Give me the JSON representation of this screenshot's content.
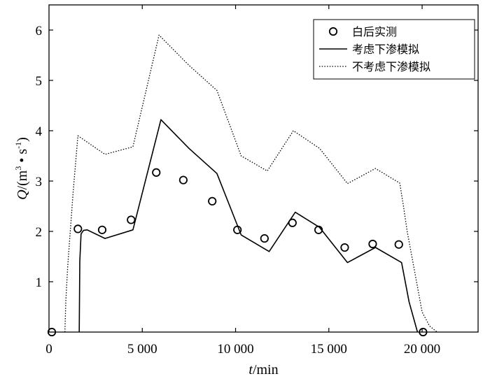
{
  "chart_data": {
    "type": "line",
    "xlabel": {
      "var": "t",
      "unit": "/min"
    },
    "ylabel": {
      "var": "Q",
      "unit_prefix": "/(m",
      "sup1": "3",
      "mid": " • s",
      "sup2": "-1",
      "unit_suffix": ")"
    },
    "xlim": [
      0,
      23000
    ],
    "ylim": [
      0,
      6.5
    ],
    "x_ticks": [
      {
        "value": 0,
        "label": "0"
      },
      {
        "value": 5000,
        "label": "5 000"
      },
      {
        "value": 10000,
        "label": "10 000"
      },
      {
        "value": 15000,
        "label": "15 000"
      },
      {
        "value": 20000,
        "label": "20 000"
      }
    ],
    "y_ticks": [
      {
        "value": 1,
        "label": "1"
      },
      {
        "value": 2,
        "label": "2"
      },
      {
        "value": 3,
        "label": "3"
      },
      {
        "value": 4,
        "label": "4"
      },
      {
        "value": 5,
        "label": "5"
      },
      {
        "value": 6,
        "label": "6"
      }
    ],
    "grid": false,
    "legend_position": "top-right",
    "series": [
      {
        "name": "白后实测",
        "style": "markers",
        "marker": "circle",
        "points": [
          [
            150,
            0
          ],
          [
            1550,
            2.05
          ],
          [
            2850,
            2.03
          ],
          [
            4400,
            2.23
          ],
          [
            5750,
            3.17
          ],
          [
            7200,
            3.02
          ],
          [
            8750,
            2.6
          ],
          [
            10100,
            2.03
          ],
          [
            11550,
            1.86
          ],
          [
            13050,
            2.17
          ],
          [
            14450,
            2.03
          ],
          [
            15850,
            1.68
          ],
          [
            17350,
            1.75
          ],
          [
            18750,
            1.74
          ],
          [
            20050,
            0
          ]
        ]
      },
      {
        "name": "考虑下渗模拟",
        "style": "solid",
        "points": [
          [
            1620,
            0
          ],
          [
            1650,
            1.4
          ],
          [
            1720,
            1.95
          ],
          [
            1850,
            2.02
          ],
          [
            2050,
            2.03
          ],
          [
            3000,
            1.86
          ],
          [
            4500,
            2.03
          ],
          [
            6000,
            4.22
          ],
          [
            7500,
            3.65
          ],
          [
            9000,
            3.15
          ],
          [
            10300,
            1.93
          ],
          [
            11800,
            1.6
          ],
          [
            13200,
            2.38
          ],
          [
            14500,
            2.08
          ],
          [
            16000,
            1.38
          ],
          [
            17500,
            1.68
          ],
          [
            18900,
            1.38
          ],
          [
            19300,
            0.6
          ],
          [
            19750,
            0
          ]
        ]
      },
      {
        "name": "不考虑下渗模拟",
        "style": "dotted",
        "points": [
          [
            850,
            0
          ],
          [
            900,
            0.6
          ],
          [
            1000,
            1.3
          ],
          [
            1300,
            2.8
          ],
          [
            1550,
            3.9
          ],
          [
            3000,
            3.53
          ],
          [
            4500,
            3.68
          ],
          [
            5900,
            5.9
          ],
          [
            7500,
            5.3
          ],
          [
            9000,
            4.8
          ],
          [
            10300,
            3.5
          ],
          [
            11700,
            3.2
          ],
          [
            13100,
            4.0
          ],
          [
            14500,
            3.65
          ],
          [
            16000,
            2.95
          ],
          [
            17500,
            3.25
          ],
          [
            18800,
            2.96
          ],
          [
            19000,
            2.5
          ],
          [
            19200,
            2.0
          ],
          [
            19600,
            1.2
          ],
          [
            20000,
            0.4
          ],
          [
            20400,
            0.12
          ],
          [
            20800,
            0
          ]
        ]
      }
    ]
  }
}
